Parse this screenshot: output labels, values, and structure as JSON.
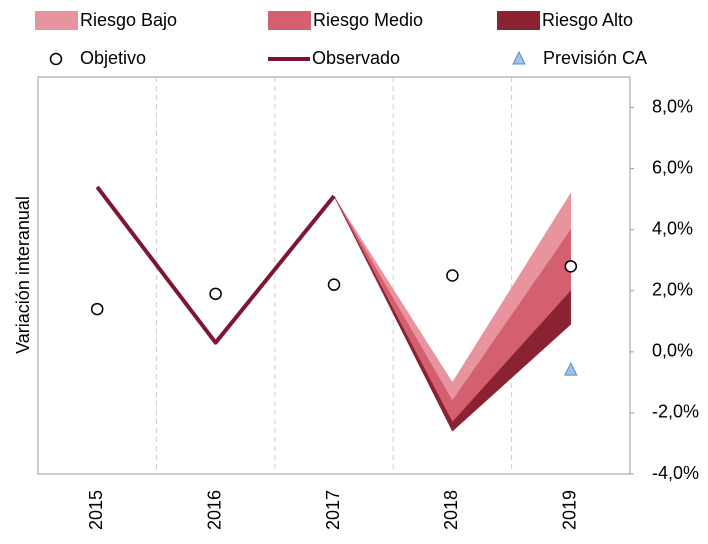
{
  "chart_data": {
    "type": "fan",
    "y_label": "Variación interanual",
    "categories": [
      "2015",
      "2016",
      "2017",
      "2018",
      "2019"
    ],
    "ylim": [
      -4,
      9
    ],
    "yticks": [
      {
        "value": -4,
        "label": "-4,0%"
      },
      {
        "value": -2,
        "label": "-2,0%"
      },
      {
        "value": 0,
        "label": "0,0%"
      },
      {
        "value": 2,
        "label": "2,0%"
      },
      {
        "value": 4,
        "label": "4,0%"
      },
      {
        "value": 6,
        "label": "6,0%"
      },
      {
        "value": 8,
        "label": "8,0%"
      }
    ],
    "vertical_grid": true,
    "bands": [
      {
        "name": "Riesgo Bajo",
        "color": "#e8949e",
        "low": [
          null,
          null,
          5.1,
          -1.6,
          4.0
        ],
        "high": [
          null,
          null,
          5.1,
          -1.0,
          5.2
        ]
      },
      {
        "name": "Riesgo Medio",
        "color": "#d45f6e",
        "low": [
          null,
          null,
          5.1,
          -2.3,
          2.0
        ],
        "high": [
          null,
          null,
          5.1,
          -1.6,
          4.0
        ]
      },
      {
        "name": "Riesgo Alto",
        "color": "#8b2232",
        "low": [
          null,
          null,
          5.1,
          -2.6,
          0.9
        ],
        "high": [
          null,
          null,
          5.1,
          -2.3,
          2.0
        ]
      }
    ],
    "objetivo": {
      "name": "Objetivo",
      "values": [
        1.4,
        1.9,
        2.2,
        2.5,
        2.8
      ]
    },
    "observado": {
      "name": "Observado",
      "color": "#7f1530",
      "values": [
        5.4,
        0.3,
        5.1,
        null,
        null
      ]
    },
    "prevision": {
      "name": "Previsión CA",
      "color": "#9dc3e6",
      "values": [
        null,
        null,
        null,
        null,
        -0.6
      ]
    }
  }
}
